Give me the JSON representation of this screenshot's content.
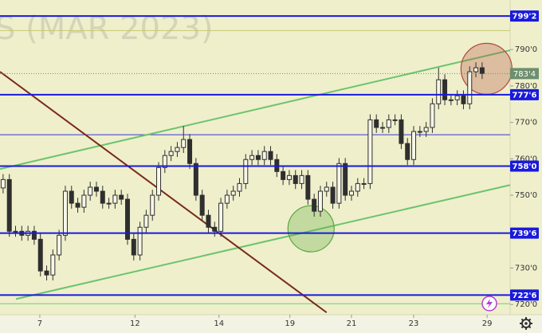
{
  "chart_data": {
    "type": "candlestick",
    "watermark": "S (MAR 2023)",
    "color": "#2f2f2f",
    "open": [
      752.0,
      754.3,
      740.1,
      740.1,
      739.0,
      740.1,
      737.9,
      729.2,
      728.1,
      733.6,
      739.0,
      751.1,
      747.8,
      746.7,
      750.0,
      752.2,
      751.1,
      747.8,
      747.8,
      750.0,
      748.9,
      737.9,
      733.6,
      741.2,
      744.5,
      750.0,
      757.6,
      760.9,
      762.0,
      763.1,
      765.3,
      758.7,
      750.0,
      744.5,
      741.2,
      740.1,
      747.8,
      750.0,
      751.1,
      753.2,
      759.8,
      760.9,
      759.8,
      762.0,
      759.8,
      756.5,
      754.3,
      755.4,
      753.2,
      755.4,
      748.9,
      745.6,
      751.1,
      752.2,
      747.8,
      758.7,
      750.0,
      751.1,
      753.2,
      753.2,
      770.7,
      768.6,
      768.6,
      770.7,
      770.7,
      764.2,
      759.8,
      767.5,
      767.5,
      768.6,
      775.1,
      781.7,
      776.2,
      776.2,
      777.3,
      775.1,
      783.9,
      785.0
    ],
    "high": [
      755.8,
      755.8,
      741.6,
      741.6,
      741.6,
      741.6,
      739.4,
      730.7,
      735.1,
      740.5,
      752.6,
      752.6,
      749.3,
      751.5,
      753.7,
      753.7,
      752.6,
      749.3,
      751.5,
      751.5,
      750.4,
      739.4,
      742.7,
      746.0,
      751.5,
      759.1,
      762.4,
      763.5,
      764.6,
      769.0,
      766.8,
      760.2,
      751.5,
      746.0,
      742.7,
      749.3,
      751.5,
      752.6,
      754.7,
      761.3,
      762.4,
      762.4,
      763.5,
      763.5,
      761.3,
      758.0,
      756.9,
      756.9,
      756.9,
      756.9,
      750.4,
      752.6,
      753.7,
      753.7,
      760.2,
      760.2,
      752.6,
      754.7,
      754.7,
      772.2,
      772.2,
      770.1,
      772.2,
      772.2,
      772.2,
      765.7,
      769.0,
      769.0,
      770.1,
      776.6,
      785.0,
      783.2,
      777.7,
      778.8,
      778.8,
      785.4,
      786.5,
      786.5
    ],
    "low": [
      750.5,
      738.6,
      738.6,
      737.5,
      737.5,
      736.4,
      727.7,
      726.6,
      726.6,
      732.1,
      737.5,
      746.3,
      745.2,
      745.2,
      748.5,
      749.6,
      746.3,
      746.3,
      746.3,
      747.4,
      736.4,
      732.1,
      732.1,
      739.7,
      743.0,
      748.5,
      756.1,
      759.4,
      760.5,
      761.6,
      757.2,
      748.5,
      743.0,
      739.7,
      738.6,
      738.6,
      746.3,
      748.5,
      749.6,
      751.7,
      758.3,
      758.3,
      758.3,
      758.3,
      755.0,
      752.8,
      752.8,
      751.7,
      751.7,
      747.4,
      744.1,
      744.1,
      749.6,
      746.3,
      746.3,
      748.5,
      748.5,
      749.6,
      751.7,
      751.7,
      767.1,
      767.1,
      767.1,
      769.2,
      762.7,
      758.3,
      758.3,
      766.0,
      766.0,
      767.1,
      773.6,
      774.7,
      774.7,
      774.7,
      773.6,
      773.6,
      782.4,
      781.9
    ],
    "close": [
      754.3,
      740.1,
      740.1,
      739.0,
      740.1,
      737.9,
      729.2,
      728.1,
      733.6,
      739.0,
      751.1,
      747.8,
      746.7,
      750.0,
      752.2,
      751.1,
      747.8,
      747.8,
      750.0,
      748.9,
      737.9,
      733.6,
      741.2,
      744.5,
      750.0,
      757.6,
      760.9,
      762.0,
      763.1,
      765.3,
      758.7,
      750.0,
      744.5,
      741.2,
      740.1,
      747.8,
      750.0,
      751.1,
      753.2,
      759.8,
      760.9,
      759.8,
      762.0,
      759.8,
      756.5,
      754.3,
      755.4,
      753.2,
      755.4,
      748.9,
      745.6,
      751.1,
      752.2,
      747.8,
      758.7,
      750.0,
      751.1,
      753.2,
      753.2,
      770.7,
      768.6,
      768.6,
      770.7,
      770.7,
      764.2,
      759.8,
      767.5,
      767.5,
      768.6,
      775.1,
      781.7,
      776.2,
      776.2,
      777.3,
      775.1,
      783.9,
      785.0,
      783.4
    ],
    "xlim": [
      -0.5,
      81.5
    ],
    "ylim": [
      717.2,
      803.6
    ],
    "xticks": [
      {
        "value": 5.9,
        "label": "7"
      },
      {
        "value": 21.2,
        "label": "12"
      },
      {
        "value": 34.7,
        "label": "14"
      },
      {
        "value": 46.1,
        "label": "19"
      },
      {
        "value": 56.0,
        "label": "21"
      },
      {
        "value": 66.0,
        "label": "23"
      },
      {
        "value": 77.8,
        "label": "29"
      }
    ],
    "yticks": [
      {
        "value": 720,
        "label": "720'0"
      },
      {
        "value": 730,
        "label": "730'0"
      },
      {
        "value": 750,
        "label": "750'0"
      },
      {
        "value": 760,
        "label": "760'0"
      },
      {
        "value": 770,
        "label": "770'0"
      },
      {
        "value": 780,
        "label": "780'0"
      },
      {
        "value": 790,
        "label": "790'0"
      }
    ],
    "levels": [
      {
        "value": 799.2,
        "label": "799'2"
      },
      {
        "value": 777.6,
        "label": "777'6"
      },
      {
        "value": 758.0,
        "label": "758'0"
      },
      {
        "value": 739.6,
        "label": "739'6"
      },
      {
        "value": 722.6,
        "label": "722'6"
      }
    ],
    "level_color": "#1a1adb",
    "thin_levels": [
      {
        "value": 795.2,
        "color": "#c4cc6a"
      },
      {
        "value": 766.6,
        "color": "#3535d8"
      },
      {
        "value": 720.2,
        "color": "#6fcf6f"
      }
    ],
    "last_price": {
      "value": 783.4,
      "label": "783'4"
    },
    "last_price_color": "#6e8f6e",
    "trendlines": [
      {
        "x": [
          -0.5,
          81.5
        ],
        "y": [
          757.2,
          789.8
        ],
        "color": "#6cc46c"
      },
      {
        "x": [
          2.06,
          81.5
        ],
        "y": [
          721.5,
          752.8
        ],
        "color": "#6cc46c"
      },
      {
        "x": [
          -0.5,
          52.0
        ],
        "y": [
          783.9,
          717.8
        ],
        "color": "#7a2a1a"
      }
    ],
    "circles": [
      {
        "x": 49.5,
        "y": 740.8,
        "color": "#5aa83c"
      },
      {
        "x": 77.7,
        "y": 784.7,
        "color": "#b04a3a"
      }
    ]
  }
}
